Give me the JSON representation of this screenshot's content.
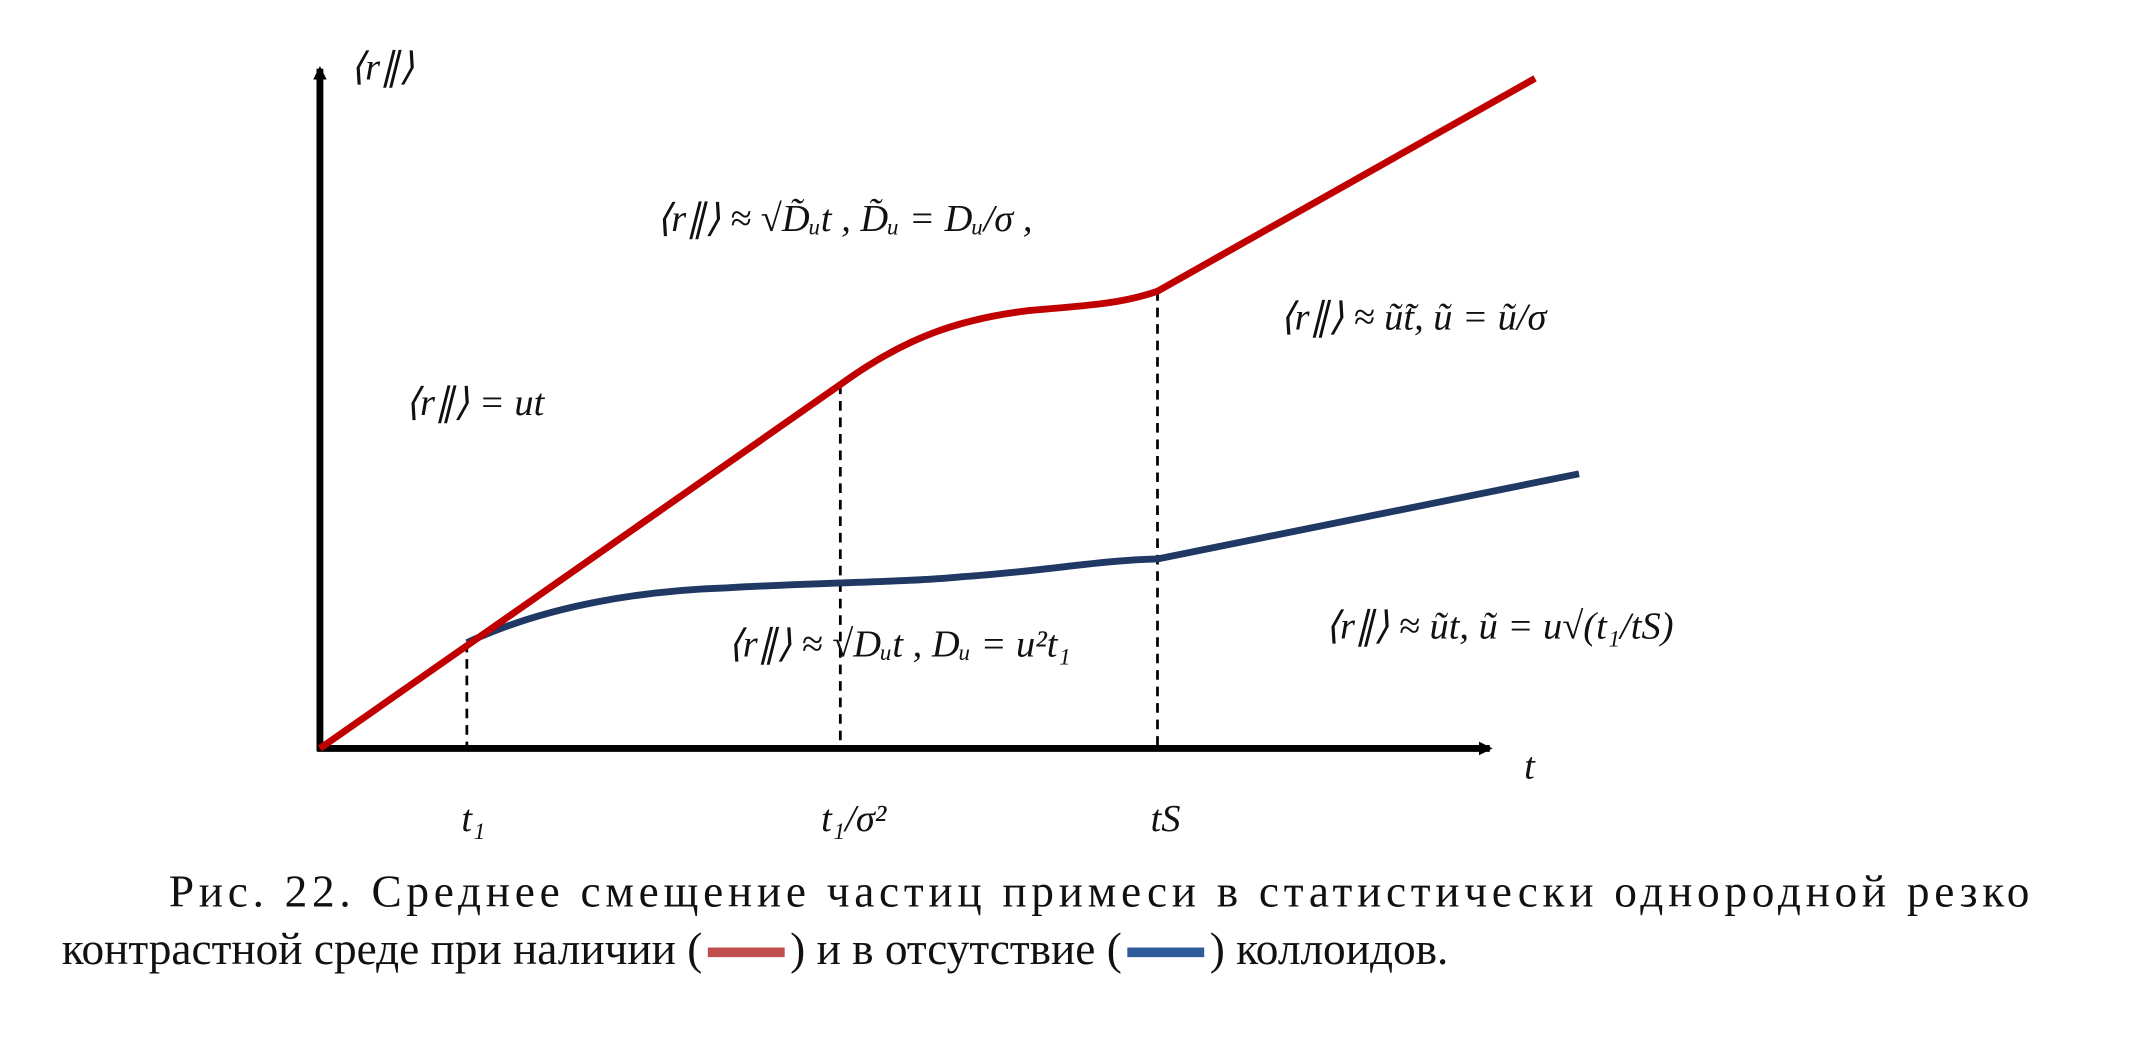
{
  "axes": {
    "y_label": "⟨r∥⟩",
    "x_label": "t"
  },
  "ticks": [
    "t₁",
    "t₁/σ²",
    "tS"
  ],
  "annotations": [
    "⟨r∥⟩ = ut",
    "⟨r∥⟩ ≈ √D̃ᵤt ,   D̃ᵤ = Dᵤ/σ ,",
    "⟨r∥⟩ ≈ ũ̃t,   ũ = ũ/σ",
    "⟨r∥⟩ ≈ √Dᵤt ,   Dᵤ = u²t₁",
    "⟨r∥⟩ ≈ ũt,   ũ = u√(t₁/tS)"
  ],
  "caption": {
    "line1": "Рис. 22. Среднее смещение частиц примеси в статистически однородной резко",
    "line2": [
      "контрастной среде при наличии (",
      ") и в отсутствие (",
      ") коллоидов."
    ]
  }
}
